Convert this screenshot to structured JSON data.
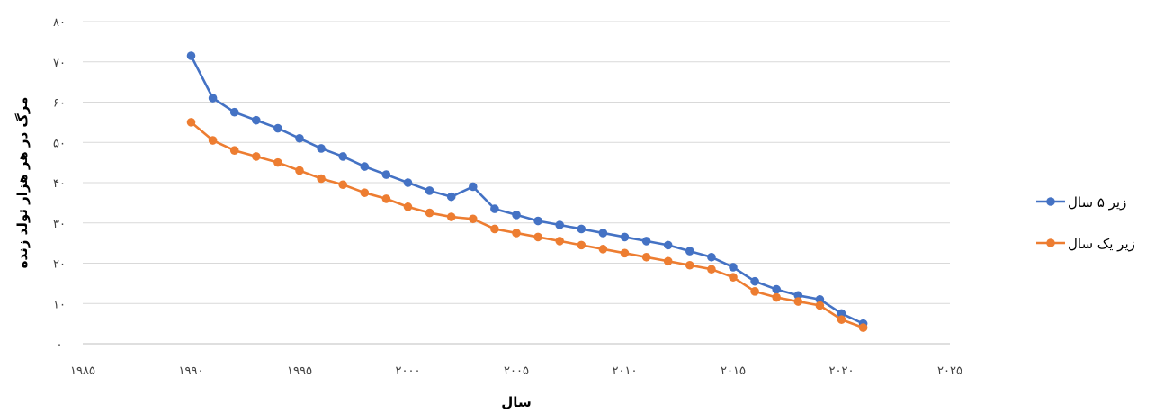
{
  "chart_data": {
    "type": "line",
    "title": "",
    "xlabel": "سال",
    "ylabel": "مرگ در هر هزار تولد زنده",
    "xlim": [
      1985,
      2025
    ],
    "ylim": [
      0,
      80
    ],
    "x_ticks": [
      {
        "value": 1985,
        "label": "۱۹۸۵"
      },
      {
        "value": 1990,
        "label": "۱۹۹۰"
      },
      {
        "value": 1995,
        "label": "۱۹۹۵"
      },
      {
        "value": 2000,
        "label": "۲۰۰۰"
      },
      {
        "value": 2005,
        "label": "۲۰۰۵"
      },
      {
        "value": 2010,
        "label": "۲۰۱۰"
      },
      {
        "value": 2015,
        "label": "۲۰۱۵"
      },
      {
        "value": 2020,
        "label": "۲۰۲۰"
      },
      {
        "value": 2025,
        "label": "۲۰۲۵"
      }
    ],
    "y_ticks": [
      {
        "value": 0,
        "label": "۰"
      },
      {
        "value": 10,
        "label": "۱۰"
      },
      {
        "value": 20,
        "label": "۲۰"
      },
      {
        "value": 30,
        "label": "۳۰"
      },
      {
        "value": 40,
        "label": "۴۰"
      },
      {
        "value": 50,
        "label": "۵۰"
      },
      {
        "value": 60,
        "label": "۶۰"
      },
      {
        "value": 70,
        "label": "۷۰"
      },
      {
        "value": 80,
        "label": "۸۰"
      }
    ],
    "grid": true,
    "legend_position": "right",
    "x": [
      1990,
      1991,
      1992,
      1993,
      1994,
      1995,
      1996,
      1997,
      1998,
      1999,
      2000,
      2001,
      2002,
      2003,
      2004,
      2005,
      2006,
      2007,
      2008,
      2009,
      2010,
      2011,
      2012,
      2013,
      2014,
      2015,
      2016,
      2017,
      2018,
      2019,
      2020,
      2021
    ],
    "series": [
      {
        "name": "زیر ۵ سال",
        "color": "#4472c4",
        "values": [
          71.5,
          61,
          57.5,
          55.5,
          53.5,
          51,
          48.5,
          46.5,
          44,
          42,
          40,
          38,
          36.5,
          39,
          33.5,
          32,
          30.5,
          29.5,
          28.5,
          27.5,
          26.5,
          25.5,
          24.5,
          23,
          21.5,
          19,
          15.5,
          13.5,
          12,
          11,
          7.5,
          5
        ]
      },
      {
        "name": "زیر یک سال",
        "color": "#ed7d31",
        "values": [
          55,
          50.5,
          48,
          46.5,
          45,
          43,
          41,
          39.5,
          37.5,
          36,
          34,
          32.5,
          31.5,
          31,
          28.5,
          27.5,
          26.5,
          25.5,
          24.5,
          23.5,
          22.5,
          21.5,
          20.5,
          19.5,
          18.5,
          16.5,
          13,
          11.5,
          10.5,
          9.5,
          6,
          4
        ]
      }
    ]
  }
}
